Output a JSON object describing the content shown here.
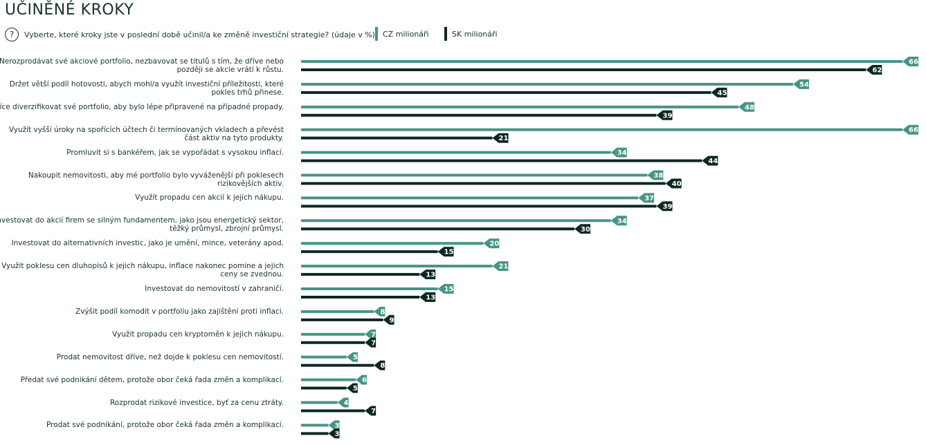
{
  "title": "UČINĚNÉ KROKY",
  "question": "Vyberte, které kroky jste v poslední době učinil/a ke změně investiční strategie? (údaje v %)",
  "question_icon": "question-circle-icon",
  "question_symbol": "?",
  "colors": {
    "cz": "#479486",
    "sk": "#0d2724",
    "text": "#17322f"
  },
  "chart_data": {
    "type": "bar",
    "orientation": "horizontal",
    "title": "UČINĚNÉ KROKY",
    "unit": "%",
    "xlim": [
      0,
      66
    ],
    "series": [
      {
        "name": "CZ milionáři",
        "values": [
          66,
          54,
          48,
          66,
          34,
          38,
          37,
          34,
          20,
          21,
          15,
          8,
          7,
          5,
          6,
          4,
          3
        ]
      },
      {
        "name": "SK milionáři",
        "values": [
          62,
          45,
          39,
          21,
          44,
          40,
          39,
          30,
          15,
          13,
          13,
          9,
          7,
          8,
          5,
          7,
          3
        ]
      }
    ],
    "categories": [
      [
        "Nerozprodávat své akciové portfolio, nezbavovat se titulů s tím, že dříve nebo",
        "později se akcie vrátí k růstu."
      ],
      [
        "Držet větší podíl hotovosti, abych mohl/a využít investiční příležitosti, které",
        "pokles trhů přinese."
      ],
      [
        "Více diverzifikovat své portfolio, aby bylo lépe připravené na případné propady."
      ],
      [
        "Využít vyšší úroky na spořících účtech či termínovaných vkladech a převést",
        "část aktiv na tyto produkty."
      ],
      [
        "Promluvit si s bankéřem, jak se vypořádat s vysokou inflací."
      ],
      [
        "Nakoupit nemovitosti, aby mé portfolio bylo vyváženější při poklesech",
        "rizikovějších aktiv."
      ],
      [
        "Využít propadu cen akcií k jejich nákupu."
      ],
      [
        "Investovat do akcií firem se silným fundamentem, jako jsou energetický sektor,",
        "těžký průmysl, zbrojní průmysl."
      ],
      [
        "Investovat do alternativních investic, jako je umění, mince, veterány apod."
      ],
      [
        "Využít poklesu cen dluhopisů k jejich nákupu, inflace nakonec pomine a jejich",
        "ceny se zvednou."
      ],
      [
        "Investovat do nemovitostí v zahraničí."
      ],
      [
        "Zvýšit podíl komodit v portfoliu jako zajištění proti inflaci."
      ],
      [
        "Využít propadu cen kryptoměn k jejich nákupu."
      ],
      [
        "Prodat nemovitost dříve, než dojde k poklesu cen nemovitostí."
      ],
      [
        "Předat své podnikání dětem, protože obor čeká řada změn a komplikací."
      ],
      [
        "Rozprodat rizikové investice, byť za cenu ztráty."
      ],
      [
        "Prodat své podnikání, protože obor čeká řada změn a komplikací."
      ]
    ]
  }
}
